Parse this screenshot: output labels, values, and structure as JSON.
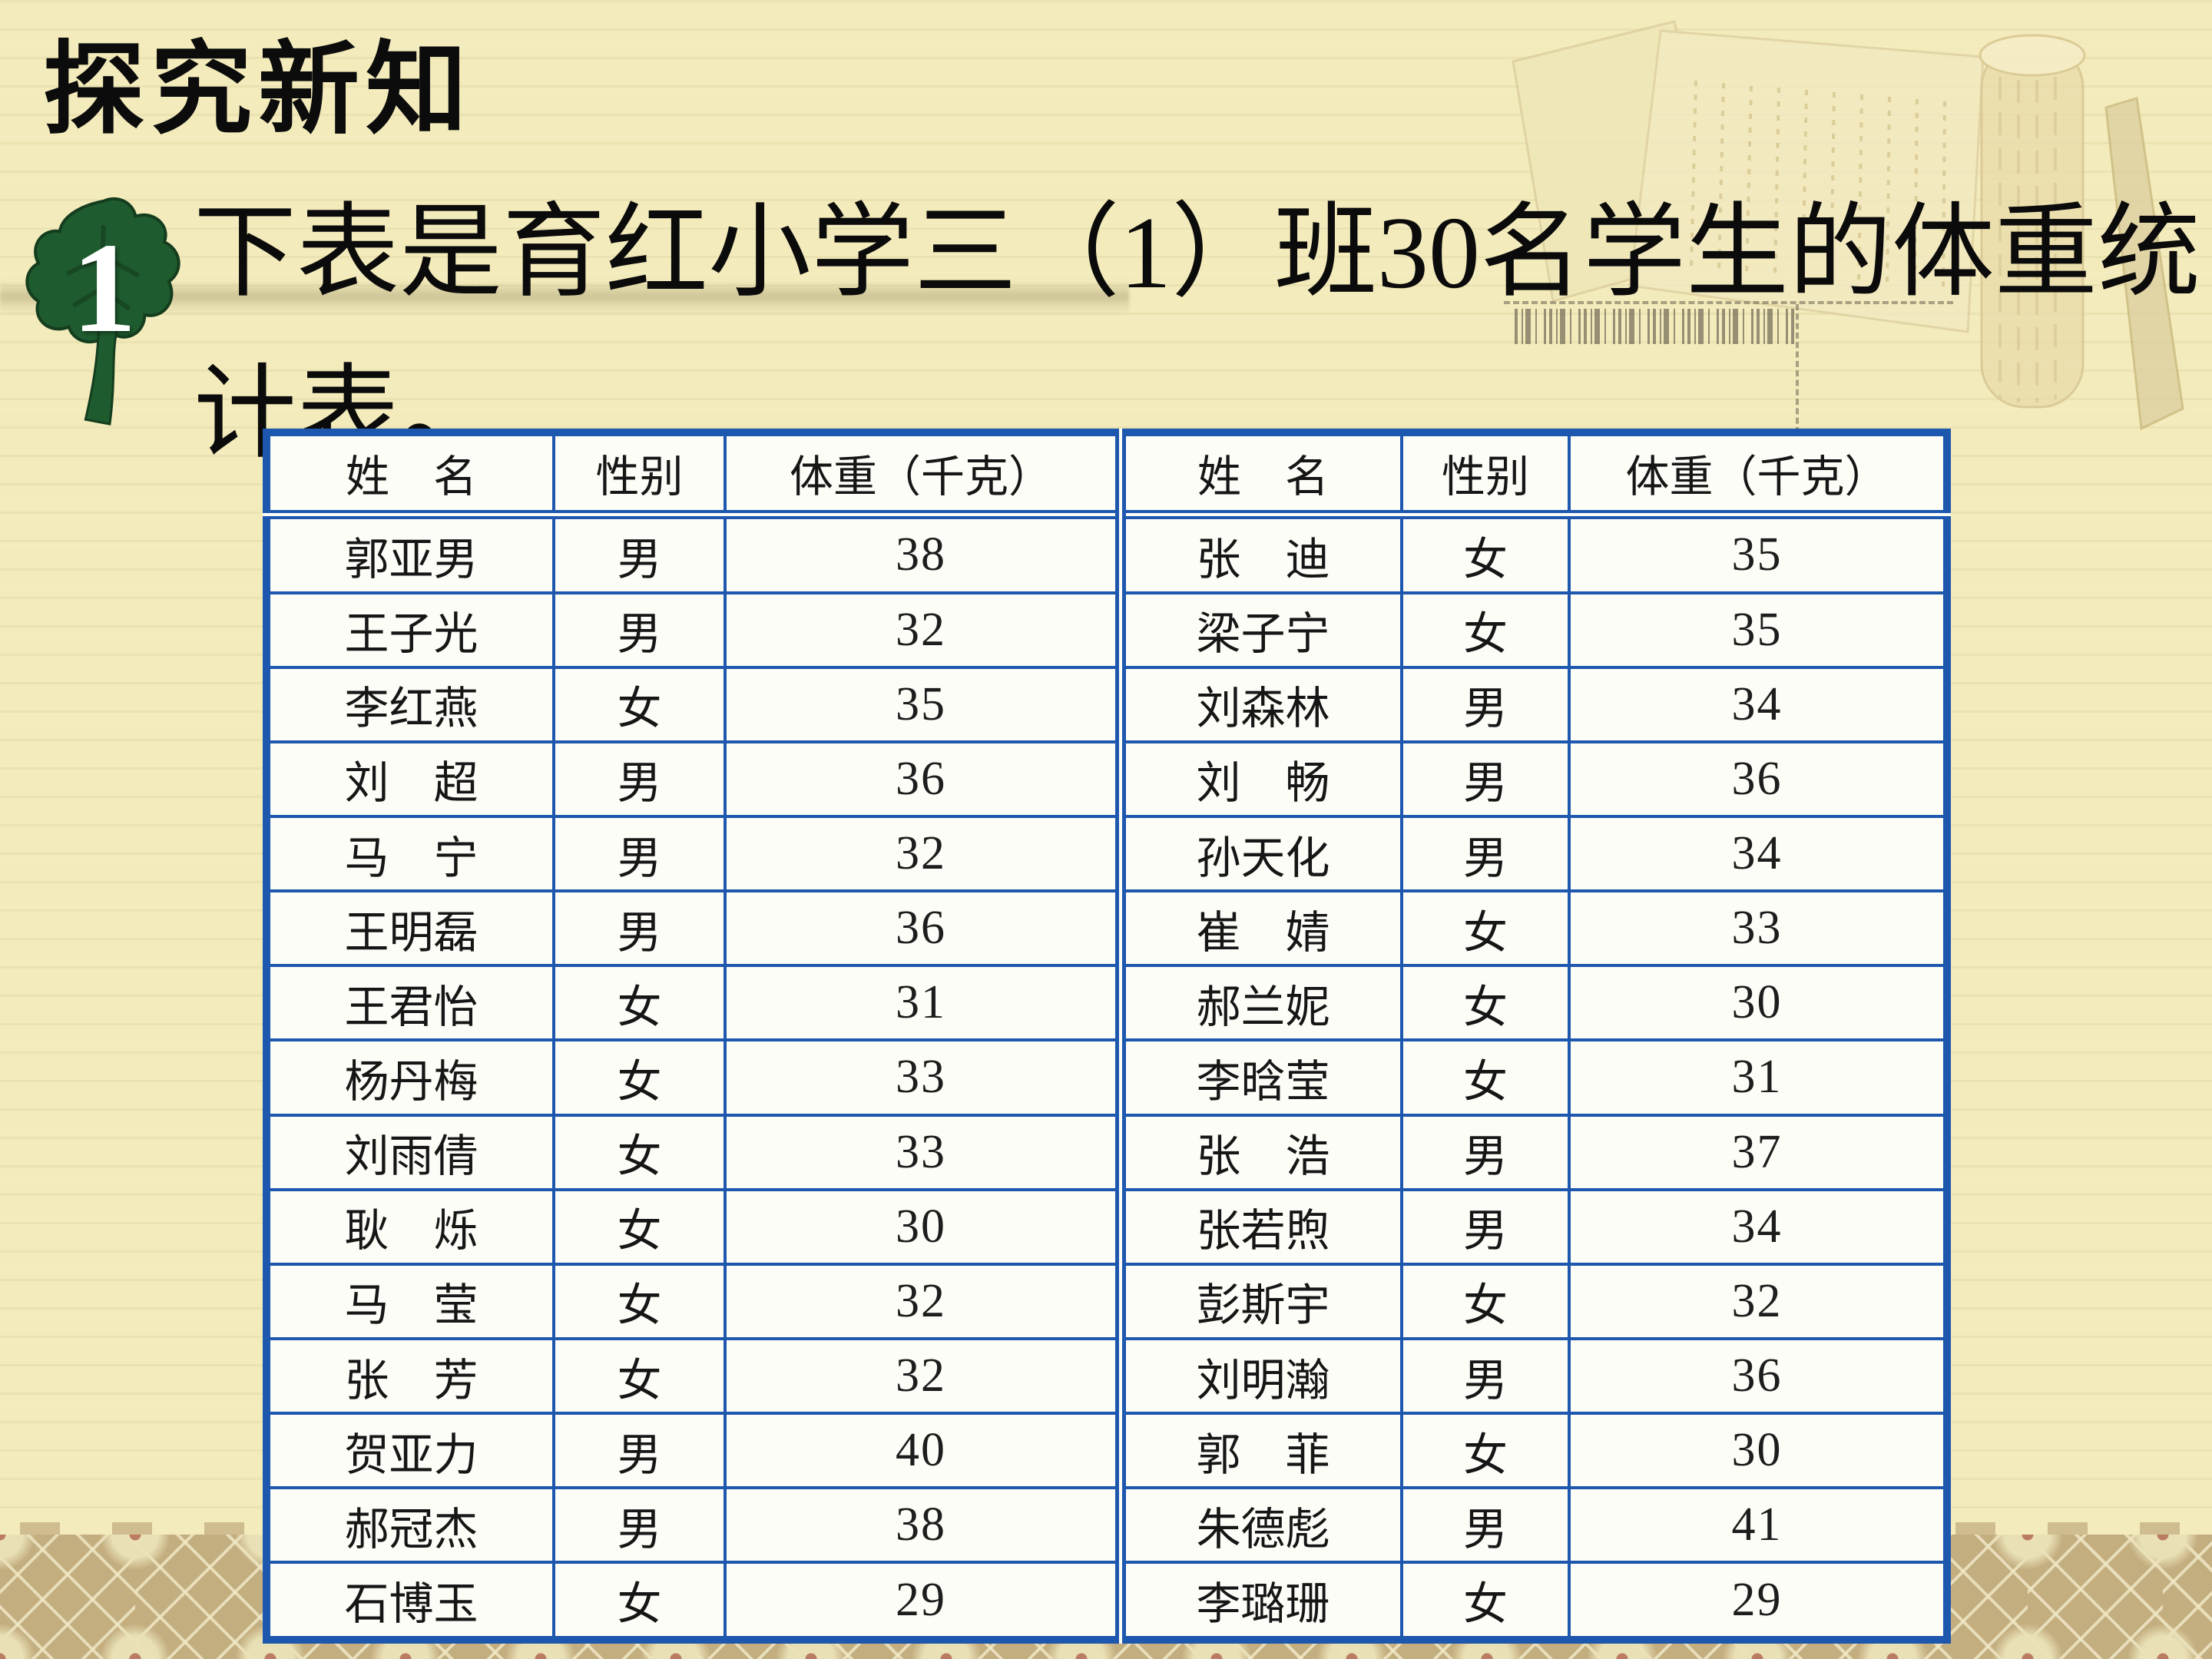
{
  "slide": {
    "section_title": "探究新知",
    "item_number": "1",
    "paragraph_lines": [
      "下表是育红小学三（1）班30名学生的体重统",
      "计表。"
    ]
  },
  "table": {
    "headers": {
      "name": "姓　名",
      "gender": "性别",
      "weight": "体重（千克）"
    },
    "left_rows": [
      {
        "name": "郭亚男",
        "gender": "男",
        "weight": "38"
      },
      {
        "name": "王子光",
        "gender": "男",
        "weight": "32"
      },
      {
        "name": "李红燕",
        "gender": "女",
        "weight": "35"
      },
      {
        "name": "刘　超",
        "gender": "男",
        "weight": "36"
      },
      {
        "name": "马　宁",
        "gender": "男",
        "weight": "32"
      },
      {
        "name": "王明磊",
        "gender": "男",
        "weight": "36"
      },
      {
        "name": "王君怡",
        "gender": "女",
        "weight": "31"
      },
      {
        "name": "杨丹梅",
        "gender": "女",
        "weight": "33"
      },
      {
        "name": "刘雨倩",
        "gender": "女",
        "weight": "33"
      },
      {
        "name": "耿　烁",
        "gender": "女",
        "weight": "30"
      },
      {
        "name": "马　莹",
        "gender": "女",
        "weight": "32"
      },
      {
        "name": "张　芳",
        "gender": "女",
        "weight": "32"
      },
      {
        "name": "贺亚力",
        "gender": "男",
        "weight": "40"
      },
      {
        "name": "郝冠杰",
        "gender": "男",
        "weight": "38"
      },
      {
        "name": "石博玉",
        "gender": "女",
        "weight": "29"
      }
    ],
    "right_rows": [
      {
        "name": "张　迪",
        "gender": "女",
        "weight": "35"
      },
      {
        "name": "梁子宁",
        "gender": "女",
        "weight": "35"
      },
      {
        "name": "刘森林",
        "gender": "男",
        "weight": "34"
      },
      {
        "name": "刘　畅",
        "gender": "男",
        "weight": "36"
      },
      {
        "name": "孙天化",
        "gender": "男",
        "weight": "34"
      },
      {
        "name": "崔　婧",
        "gender": "女",
        "weight": "33"
      },
      {
        "name": "郝兰妮",
        "gender": "女",
        "weight": "30"
      },
      {
        "name": "李晗莹",
        "gender": "女",
        "weight": "31"
      },
      {
        "name": "张　浩",
        "gender": "男",
        "weight": "37"
      },
      {
        "name": "张若煦",
        "gender": "男",
        "weight": "34"
      },
      {
        "name": "彭斯宇",
        "gender": "女",
        "weight": "32"
      },
      {
        "name": "刘明瀚",
        "gender": "男",
        "weight": "36"
      },
      {
        "name": "郭　菲",
        "gender": "女",
        "weight": "30"
      },
      {
        "name": "朱德彪",
        "gender": "男",
        "weight": "41"
      },
      {
        "name": "李璐珊",
        "gender": "女",
        "weight": "29"
      }
    ]
  },
  "colors": {
    "background": "#f3ebbb",
    "table_border": "#1d57ae",
    "leaf_green": "#1e5b2e",
    "brocade_tan": "#c3ae80",
    "text": "#0c0c0c"
  }
}
